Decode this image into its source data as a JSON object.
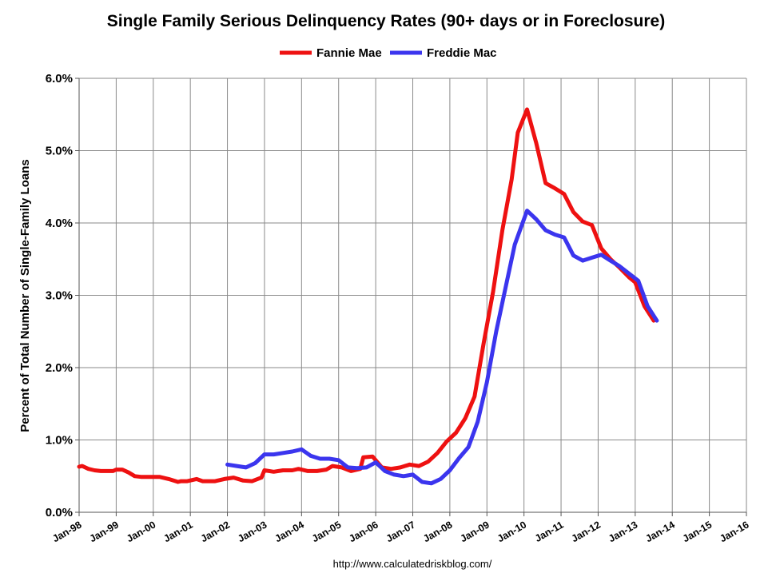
{
  "chart_data": {
    "type": "line",
    "title": "Single Family Serious Delinquency Rates (90+ days or in Foreclosure)",
    "xlabel": "",
    "ylabel": "Percent of Total Number of Single-Family Loans",
    "source": "http://www.calculatedriskblog.com/",
    "legend_position": "top-center",
    "grid": true,
    "x_range": [
      "1998-01",
      "2016-01"
    ],
    "y_range": [
      0.0,
      6.0
    ],
    "x_tick_labels": [
      "Jan-98",
      "Jan-99",
      "Jan-00",
      "Jan-01",
      "Jan-02",
      "Jan-03",
      "Jan-04",
      "Jan-05",
      "Jan-06",
      "Jan-07",
      "Jan-08",
      "Jan-09",
      "Jan-10",
      "Jan-11",
      "Jan-12",
      "Jan-13",
      "Jan-14",
      "Jan-15",
      "Jan-16"
    ],
    "y_tick_labels": [
      "0.0%",
      "1.0%",
      "2.0%",
      "3.0%",
      "4.0%",
      "5.0%",
      "6.0%"
    ],
    "series": [
      {
        "name": "Fannie Mae",
        "color": "#ee1111",
        "points": [
          [
            "1998-01",
            0.63
          ],
          [
            "1998-02",
            0.64
          ],
          [
            "1998-04",
            0.6
          ],
          [
            "1998-06",
            0.58
          ],
          [
            "1998-08",
            0.57
          ],
          [
            "1998-10",
            0.57
          ],
          [
            "1998-12",
            0.57
          ],
          [
            "1999-01",
            0.59
          ],
          [
            "1999-03",
            0.59
          ],
          [
            "1999-05",
            0.55
          ],
          [
            "1999-07",
            0.5
          ],
          [
            "1999-09",
            0.49
          ],
          [
            "1999-12",
            0.49
          ],
          [
            "2000-03",
            0.49
          ],
          [
            "2000-06",
            0.46
          ],
          [
            "2000-09",
            0.42
          ],
          [
            "2000-10",
            0.43
          ],
          [
            "2000-12",
            0.43
          ],
          [
            "2001-03",
            0.46
          ],
          [
            "2001-05",
            0.43
          ],
          [
            "2001-09",
            0.43
          ],
          [
            "2001-12",
            0.46
          ],
          [
            "2002-03",
            0.48
          ],
          [
            "2002-06",
            0.44
          ],
          [
            "2002-09",
            0.43
          ],
          [
            "2002-12",
            0.48
          ],
          [
            "2003-01",
            0.58
          ],
          [
            "2003-04",
            0.56
          ],
          [
            "2003-07",
            0.58
          ],
          [
            "2003-10",
            0.58
          ],
          [
            "2003-12",
            0.6
          ],
          [
            "2004-03",
            0.57
          ],
          [
            "2004-06",
            0.57
          ],
          [
            "2004-09",
            0.59
          ],
          [
            "2004-11",
            0.64
          ],
          [
            "2005-02",
            0.62
          ],
          [
            "2005-05",
            0.57
          ],
          [
            "2005-08",
            0.6
          ],
          [
            "2005-09",
            0.76
          ],
          [
            "2005-12",
            0.77
          ],
          [
            "2006-03",
            0.62
          ],
          [
            "2006-06",
            0.6
          ],
          [
            "2006-09",
            0.62
          ],
          [
            "2006-12",
            0.66
          ],
          [
            "2007-03",
            0.64
          ],
          [
            "2007-06",
            0.7
          ],
          [
            "2007-09",
            0.82
          ],
          [
            "2007-12",
            0.98
          ],
          [
            "2008-03",
            1.1
          ],
          [
            "2008-06",
            1.3
          ],
          [
            "2008-09",
            1.6
          ],
          [
            "2008-12",
            2.35
          ],
          [
            "2009-03",
            3.05
          ],
          [
            "2009-06",
            3.9
          ],
          [
            "2009-09",
            4.6
          ],
          [
            "2009-11",
            5.25
          ],
          [
            "2010-02",
            5.57
          ],
          [
            "2010-05",
            5.1
          ],
          [
            "2010-08",
            4.55
          ],
          [
            "2010-11",
            4.48
          ],
          [
            "2011-02",
            4.4
          ],
          [
            "2011-05",
            4.15
          ],
          [
            "2011-08",
            4.02
          ],
          [
            "2011-11",
            3.97
          ],
          [
            "2012-02",
            3.65
          ],
          [
            "2012-05",
            3.5
          ],
          [
            "2012-08",
            3.38
          ],
          [
            "2012-11",
            3.25
          ],
          [
            "2013-01",
            3.18
          ],
          [
            "2013-04",
            2.85
          ],
          [
            "2013-07",
            2.65
          ]
        ]
      },
      {
        "name": "Freddie Mac",
        "color": "#3b35ee",
        "points": [
          [
            "2002-01",
            0.66
          ],
          [
            "2002-04",
            0.64
          ],
          [
            "2002-07",
            0.62
          ],
          [
            "2002-10",
            0.68
          ],
          [
            "2003-01",
            0.8
          ],
          [
            "2003-04",
            0.8
          ],
          [
            "2003-07",
            0.82
          ],
          [
            "2003-10",
            0.84
          ],
          [
            "2004-01",
            0.87
          ],
          [
            "2004-04",
            0.78
          ],
          [
            "2004-07",
            0.74
          ],
          [
            "2004-10",
            0.74
          ],
          [
            "2005-01",
            0.72
          ],
          [
            "2005-04",
            0.62
          ],
          [
            "2005-07",
            0.61
          ],
          [
            "2005-10",
            0.62
          ],
          [
            "2006-01",
            0.69
          ],
          [
            "2006-04",
            0.57
          ],
          [
            "2006-07",
            0.52
          ],
          [
            "2006-10",
            0.5
          ],
          [
            "2007-01",
            0.52
          ],
          [
            "2007-04",
            0.42
          ],
          [
            "2007-07",
            0.4
          ],
          [
            "2007-10",
            0.46
          ],
          [
            "2008-01",
            0.58
          ],
          [
            "2008-04",
            0.75
          ],
          [
            "2008-07",
            0.9
          ],
          [
            "2008-10",
            1.25
          ],
          [
            "2009-01",
            1.8
          ],
          [
            "2009-04",
            2.5
          ],
          [
            "2009-07",
            3.1
          ],
          [
            "2009-10",
            3.7
          ],
          [
            "2010-02",
            4.17
          ],
          [
            "2010-05",
            4.05
          ],
          [
            "2010-08",
            3.9
          ],
          [
            "2010-11",
            3.84
          ],
          [
            "2011-02",
            3.8
          ],
          [
            "2011-05",
            3.55
          ],
          [
            "2011-08",
            3.48
          ],
          [
            "2011-11",
            3.52
          ],
          [
            "2012-02",
            3.56
          ],
          [
            "2012-05",
            3.48
          ],
          [
            "2012-08",
            3.4
          ],
          [
            "2012-11",
            3.3
          ],
          [
            "2013-02",
            3.2
          ],
          [
            "2013-05",
            2.85
          ],
          [
            "2013-08",
            2.65
          ]
        ]
      }
    ]
  }
}
